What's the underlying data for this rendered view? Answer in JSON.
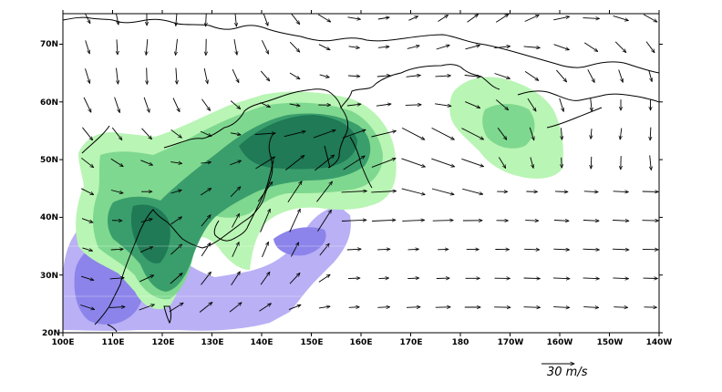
{
  "map": {
    "longitude_labels": [
      "100E",
      "110E",
      "120E",
      "130E",
      "140E",
      "150E",
      "160E",
      "170E",
      "180",
      "170W",
      "160W",
      "150W",
      "140W"
    ],
    "latitude_labels": [
      "20N",
      "30N",
      "40N",
      "50N",
      "60N",
      "70N"
    ],
    "reference_vector_label": "30 m/s",
    "colors": {
      "frame": "#000000",
      "coastline": "#000000",
      "light_green": "#b9f5b4",
      "mid_green": "#7fd88f",
      "dark_green": "#3a9e6c",
      "darkest_green": "#1f7a55",
      "light_purple": "#b9b0f5",
      "mid_purple": "#8c84ea",
      "wind_arrow": "#000000"
    }
  }
}
